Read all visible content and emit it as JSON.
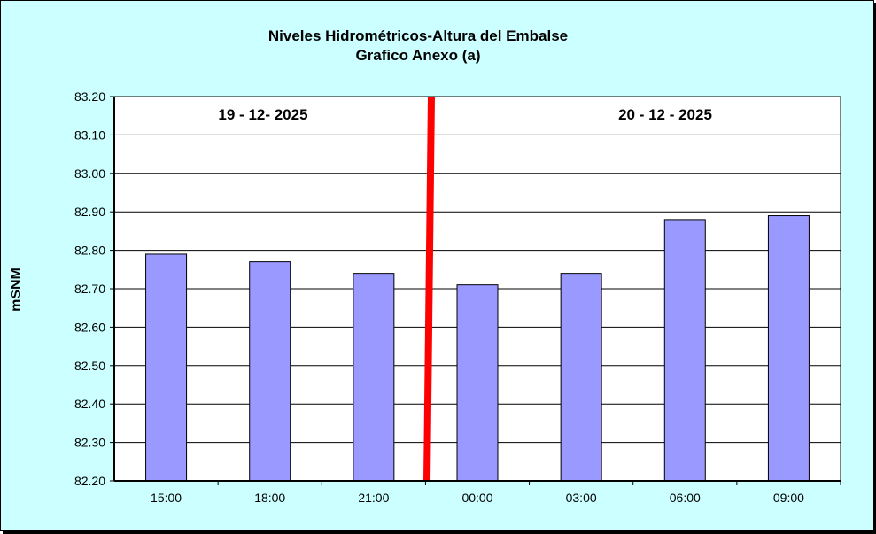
{
  "chart_data": {
    "type": "bar",
    "title": "Niveles Hidrométricos-Altura del Embalse",
    "subtitle": "Grafico Anexo (a)",
    "xlabel": "",
    "ylabel": "mSNM",
    "categories": [
      "15:00",
      "18:00",
      "21:00",
      "00:00",
      "03:00",
      "06:00",
      "09:00"
    ],
    "values": [
      82.79,
      82.77,
      82.74,
      82.71,
      82.74,
      82.88,
      82.89
    ],
    "ylim": [
      82.2,
      83.2
    ],
    "yticks": [
      "82.20",
      "82.30",
      "82.40",
      "82.50",
      "82.60",
      "82.70",
      "82.80",
      "82.90",
      "83.00",
      "83.10",
      "83.20"
    ],
    "grid": true,
    "legend": "none",
    "annotations": [
      {
        "text": "19 - 12- 2025"
      },
      {
        "text": "20 - 12 - 2025"
      }
    ],
    "day_divider": "between 21:00 and 00:00",
    "colors": {
      "bar": "#9999ff",
      "divider": "#ff0000",
      "background": "#ccffff",
      "plot": "#ffffff"
    }
  }
}
